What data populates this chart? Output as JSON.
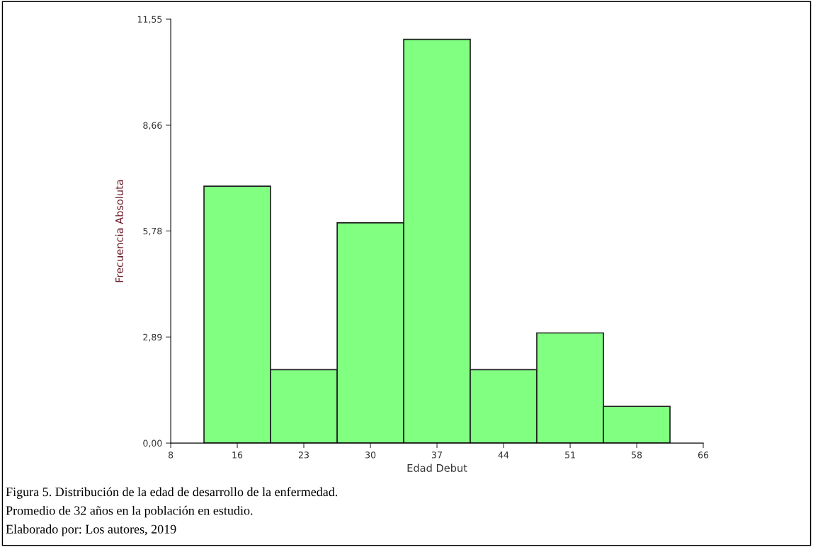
{
  "chart_data": {
    "type": "histogram",
    "xlabel": "Edad Debut",
    "ylabel": "Frecuencia Absoluta",
    "bins": [
      12,
      19.14,
      26.29,
      33.43,
      40.57,
      47.71,
      54.86,
      62
    ],
    "values": [
      7,
      2,
      6,
      11,
      2,
      3,
      1
    ],
    "color": "#80ff80",
    "xlim": [
      8.43,
      65.57
    ],
    "xticks": [
      {
        "value": 8.43,
        "label": "8"
      },
      {
        "value": 15.57,
        "label": "16"
      },
      {
        "value": 22.71,
        "label": "23"
      },
      {
        "value": 29.86,
        "label": "30"
      },
      {
        "value": 37,
        "label": "37"
      },
      {
        "value": 44.14,
        "label": "44"
      },
      {
        "value": 51.29,
        "label": "51"
      },
      {
        "value": 58.43,
        "label": "58"
      },
      {
        "value": 65.57,
        "label": "66"
      }
    ],
    "ylim": [
      0,
      11.55
    ],
    "yticks": [
      {
        "value": 0,
        "label": "0,00"
      },
      {
        "value": 2.89,
        "label": "2,89"
      },
      {
        "value": 5.78,
        "label": "5,78"
      },
      {
        "value": 8.66,
        "label": "8,66"
      },
      {
        "value": 11.55,
        "label": "11,55"
      }
    ],
    "grid": false,
    "annotations": [
      "Figura 5. Distribución de la edad de desarrollo de la enfermedad.",
      "Promedio de 32 años en la población en estudio.",
      "Elaborado por: Los autores, 2019"
    ]
  }
}
